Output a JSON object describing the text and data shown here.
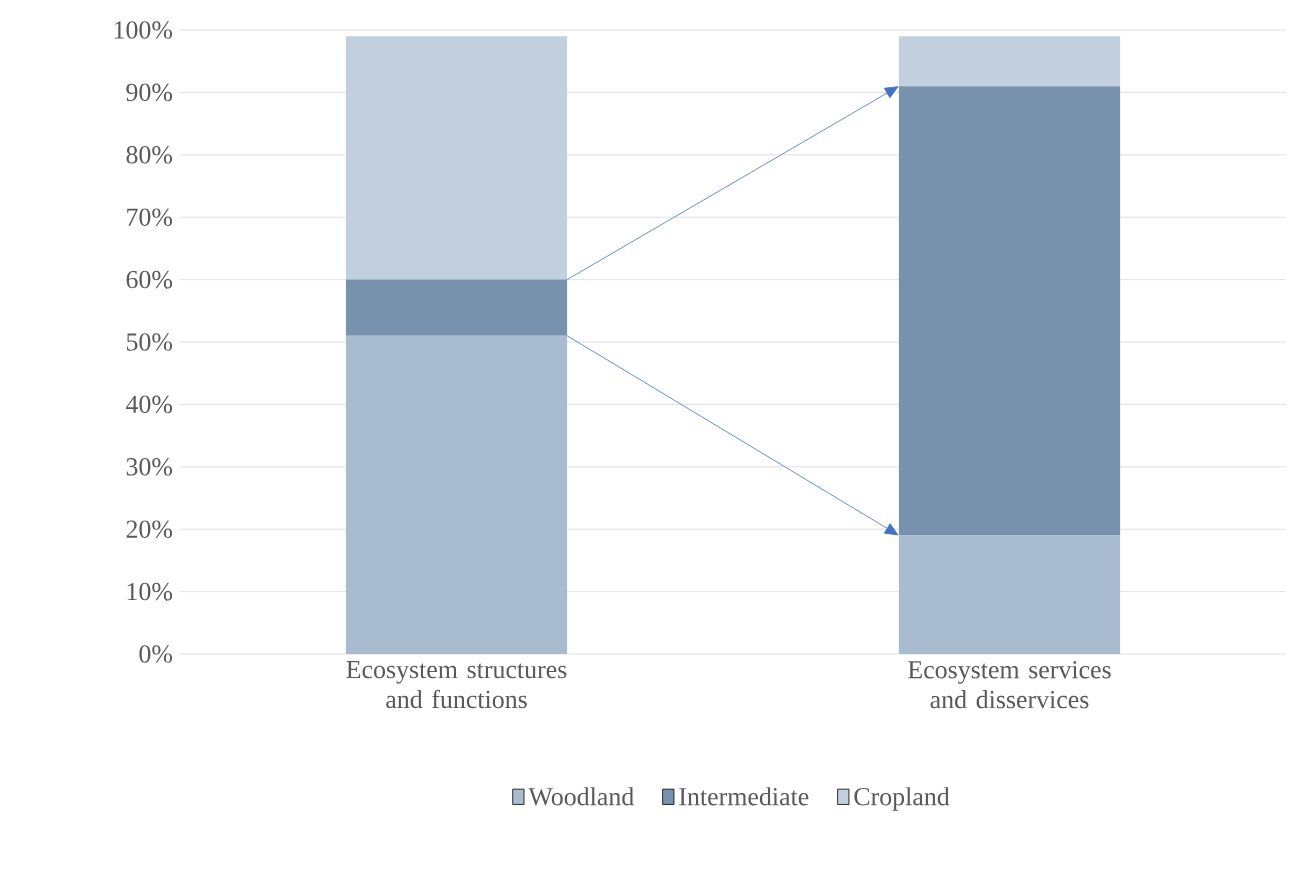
{
  "chart_data": {
    "type": "bar",
    "stacked": true,
    "categories": [
      "Ecosystem structures and functions",
      "Ecosystem services and disservices"
    ],
    "series": [
      {
        "name": "Woodland",
        "color": "#a9bccf",
        "values": [
          51,
          19
        ]
      },
      {
        "name": "Intermediate",
        "color": "#7892ad",
        "values": [
          9,
          72
        ]
      },
      {
        "name": "Cropland",
        "color": "#c2cfdc",
        "values": [
          39,
          8
        ]
      }
    ],
    "ylim": [
      0,
      100
    ],
    "yticks": [
      {
        "value": 0,
        "label": "0%"
      },
      {
        "value": 10,
        "label": "10%"
      },
      {
        "value": 20,
        "label": "20%"
      },
      {
        "value": 30,
        "label": "30%"
      },
      {
        "value": 40,
        "label": "40%"
      },
      {
        "value": 50,
        "label": "50%"
      },
      {
        "value": 60,
        "label": "60%"
      },
      {
        "value": 70,
        "label": "70%"
      },
      {
        "value": 80,
        "label": "80%"
      },
      {
        "value": 90,
        "label": "90%"
      },
      {
        "value": 100,
        "label": "100%"
      }
    ],
    "grid": "y",
    "legend": "bottom"
  }
}
